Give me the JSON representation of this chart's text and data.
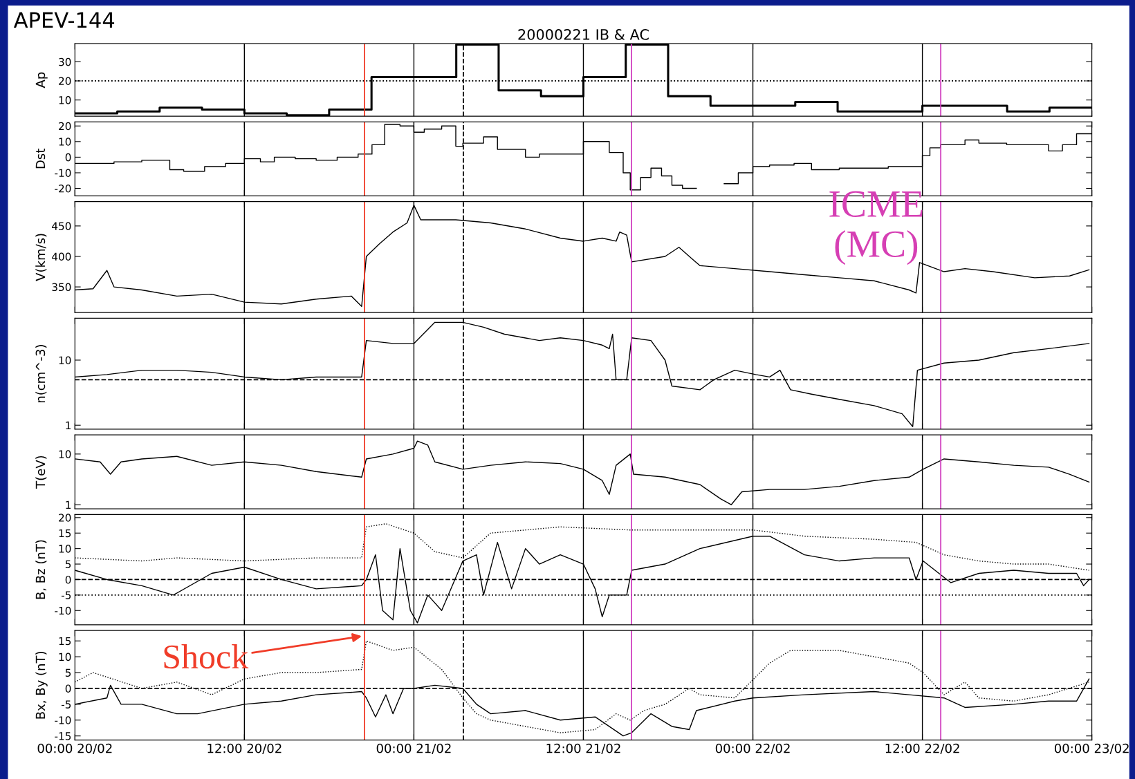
{
  "chart_data": [
    {
      "type": "step",
      "title": "20000221 IB & AC",
      "ylabel": "Ap",
      "annotations": [
        "APEV-144"
      ],
      "xlim": [
        "2000-02-20T00:00",
        "2000-02-23T00:00"
      ],
      "xticks": [
        {
          "value": "2000-02-20T00:00",
          "label": null
        },
        {
          "value": "2000-02-20T12:00",
          "label": null
        },
        {
          "value": "2000-02-21T00:00",
          "label": null
        },
        {
          "value": "2000-02-21T12:00",
          "label": null
        },
        {
          "value": "2000-02-22T00:00",
          "label": null
        },
        {
          "value": "2000-02-22T12:00",
          "label": null
        },
        {
          "value": "2000-02-23T00:00",
          "label": null
        }
      ],
      "ylim": [
        1.5,
        39.5
      ],
      "yticks": [
        10,
        20,
        30
      ],
      "grid": "x",
      "tick_labels": "y",
      "series": [
        {
          "color": "#000000",
          "x": [
            "2000-02-20T00:00",
            "2000-02-20T03:00",
            "2000-02-20T06:00",
            "2000-02-20T09:00",
            "2000-02-20T12:00",
            "2000-02-20T15:00",
            "2000-02-20T18:00",
            "2000-02-20T21:00",
            "2000-02-21T00:00",
            "2000-02-21T03:00",
            "2000-02-21T06:00",
            "2000-02-21T09:00",
            "2000-02-21T12:00",
            "2000-02-21T15:00",
            "2000-02-21T18:00",
            "2000-02-21T21:00",
            "2000-02-22T00:00",
            "2000-02-22T03:00",
            "2000-02-22T06:00",
            "2000-02-22T09:00",
            "2000-02-22T12:00",
            "2000-02-22T15:00",
            "2000-02-22T18:00",
            "2000-02-22T21:00",
            "2000-02-23T00:00"
          ],
          "values": [
            3,
            4,
            6,
            5,
            3,
            2,
            5,
            22,
            22,
            39,
            15,
            12,
            22,
            39,
            12,
            7,
            7,
            9,
            4,
            4,
            7,
            7,
            4,
            6,
            6
          ]
        }
      ],
      "ref_lines": [
        {
          "axis": "y",
          "value": 20,
          "line_style": "dotted",
          "color": "#000000"
        },
        {
          "axis": "x",
          "value": "2000-02-20T20:30",
          "color": "#f03c28"
        },
        {
          "axis": "x",
          "value": "2000-02-21T03:30",
          "line_style": "dashed",
          "color": "#000000"
        },
        {
          "axis": "x",
          "value": "2000-02-21T15:24",
          "color": "#d040c0"
        },
        {
          "axis": "x",
          "value": "2000-02-22T13:18",
          "color": "#d040c0"
        }
      ]
    },
    {
      "type": "step",
      "ylabel": "Dst",
      "xlim": [
        "2000-02-20T00:00",
        "2000-02-23T00:00"
      ],
      "xticks": [
        {
          "value": "2000-02-20T00:00",
          "label": null
        },
        {
          "value": "2000-02-20T12:00",
          "label": null
        },
        {
          "value": "2000-02-21T00:00",
          "label": null
        },
        {
          "value": "2000-02-21T12:00",
          "label": null
        },
        {
          "value": "2000-02-22T00:00",
          "label": null
        },
        {
          "value": "2000-02-22T12:00",
          "label": null
        },
        {
          "value": "2000-02-23T00:00",
          "label": null
        }
      ],
      "ylim": [
        -24.8,
        22.6
      ],
      "yticks": [
        -20,
        -10,
        0,
        10,
        20
      ],
      "grid": "x",
      "tick_labels": "y",
      "series": [
        {
          "color": "#000000",
          "x": [
            "2000-02-20T00:00",
            "2000-02-20T02:46",
            "2000-02-20T04:44",
            "2000-02-20T06:43",
            "2000-02-20T07:42",
            "2000-02-20T09:11",
            "2000-02-20T10:40",
            "2000-02-20T12:00",
            "2000-02-20T13:08",
            "2000-02-20T14:07",
            "2000-02-20T15:36",
            "2000-02-20T17:05",
            "2000-02-20T18:34",
            "2000-02-20T20:03",
            "2000-02-20T21:02",
            "2000-02-20T21:56",
            "2000-02-20T23:01",
            "2000-02-21T00:00",
            "2000-02-21T00:44",
            "2000-02-21T01:58",
            "2000-02-21T02:58",
            "2000-02-21T03:28",
            "2000-02-21T04:56",
            "2000-02-21T05:55",
            "2000-02-21T07:54",
            "2000-02-21T08:53",
            "2000-02-21T12:00",
            "2000-02-21T13:50",
            "2000-02-21T14:49",
            "2000-02-21T15:19",
            "2000-02-21T16:03",
            "2000-02-21T16:47",
            "2000-02-21T17:32",
            "2000-02-21T18:16",
            "2000-02-21T19:01",
            "2000-02-21T20:00",
            "2000-02-21T21:58",
            "2000-02-21T22:58",
            "2000-02-22T00:00",
            "2000-02-22T01:11",
            "2000-02-22T02:55",
            "2000-02-22T04:09",
            "2000-02-22T06:07",
            "2000-02-22T09:35",
            "2000-02-22T12:00",
            "2000-02-22T12:32",
            "2000-02-22T13:17",
            "2000-02-22T15:01",
            "2000-02-22T16:00",
            "2000-02-22T17:58",
            "2000-02-22T20:56",
            "2000-02-22T21:55",
            "2000-02-22T22:55",
            "2000-02-23T00:00"
          ],
          "values": [
            -4,
            -3,
            -2,
            -8,
            -9,
            -6,
            -4,
            -1,
            -3,
            0,
            -1,
            -2,
            0,
            2,
            8,
            21,
            20,
            16,
            18,
            20,
            7,
            9,
            13,
            5,
            0,
            2,
            10,
            3,
            -10,
            -21,
            -13,
            -7,
            -12,
            -18,
            -20,
            null,
            -17,
            -10,
            -6,
            -5,
            -4,
            -8,
            -7,
            -6,
            1,
            6,
            8,
            11,
            9,
            8,
            4,
            8,
            15,
            15
          ]
        }
      ],
      "ref_lines": [
        {
          "axis": "x",
          "value": "2000-02-20T20:30",
          "color": "#f03c28"
        },
        {
          "axis": "x",
          "value": "2000-02-21T03:30",
          "line_style": "dashed",
          "color": "#000000"
        },
        {
          "axis": "x",
          "value": "2000-02-21T15:24",
          "color": "#d040c0"
        },
        {
          "axis": "x",
          "value": "2000-02-22T13:18",
          "color": "#d040c0"
        }
      ]
    },
    {
      "type": "line",
      "ylabel": "V(km/s)",
      "annotations": [
        "ICME\n(MC)"
      ],
      "xlim": [
        "2000-02-20T00:00",
        "2000-02-23T00:00"
      ],
      "xticks": [
        {
          "value": "2000-02-20T00:00",
          "label": null
        },
        {
          "value": "2000-02-20T12:00",
          "label": null
        },
        {
          "value": "2000-02-21T00:00",
          "label": null
        },
        {
          "value": "2000-02-21T12:00",
          "label": null
        },
        {
          "value": "2000-02-22T00:00",
          "label": null
        },
        {
          "value": "2000-02-22T12:00",
          "label": null
        },
        {
          "value": "2000-02-23T00:00",
          "label": null
        }
      ],
      "ylim": [
        308,
        490
      ],
      "yticks": [
        350,
        400,
        450
      ],
      "grid": "x",
      "tick_labels": "y",
      "series": [
        {
          "color": "#000000",
          "x": [
            "2000-02-20T00:00",
            "2000-02-20T01:17",
            "2000-02-20T02:16",
            "2000-02-20T02:46",
            "2000-02-20T04:44",
            "2000-02-20T07:13",
            "2000-02-20T09:41",
            "2000-02-20T12:00",
            "2000-02-20T14:37",
            "2000-02-20T17:05",
            "2000-02-20T19:34",
            "2000-02-20T20:18",
            "2000-02-20T20:38",
            "2000-02-20T21:32",
            "2000-02-20T22:31",
            "2000-02-20T23:31",
            "2000-02-21T00:00",
            "2000-02-21T00:29",
            "2000-02-21T02:58",
            "2000-02-21T05:26",
            "2000-02-21T07:54",
            "2000-02-21T10:22",
            "2000-02-21T12:00",
            "2000-02-21T13:20",
            "2000-02-21T14:19",
            "2000-02-21T14:34",
            "2000-02-21T15:04",
            "2000-02-21T15:25",
            "2000-02-21T17:47",
            "2000-02-21T18:46",
            "2000-02-21T19:45",
            "2000-02-21T20:15",
            "2000-02-21T22:43",
            "2000-02-22T01:11",
            "2000-02-22T03:39",
            "2000-02-22T06:07",
            "2000-02-22T08:35",
            "2000-02-22T11:04",
            "2000-02-22T11:33",
            "2000-02-22T11:48",
            "2000-02-22T13:32",
            "2000-02-22T15:01",
            "2000-02-22T16:59",
            "2000-02-22T19:57",
            "2000-02-22T22:25",
            "2000-02-22T23:48"
          ],
          "values": [
            345,
            347,
            377,
            350,
            345,
            335,
            338,
            325,
            322,
            330,
            335,
            318,
            400,
            420,
            440,
            455,
            484,
            460,
            460,
            455,
            445,
            430,
            425,
            430,
            425,
            440,
            435,
            391,
            400,
            415,
            395,
            385,
            380,
            375,
            370,
            365,
            360,
            345,
            340,
            390,
            375,
            380,
            375,
            365,
            368,
            378
          ]
        }
      ],
      "ref_lines": [
        {
          "axis": "x",
          "value": "2000-02-20T20:30",
          "color": "#f03c28"
        },
        {
          "axis": "x",
          "value": "2000-02-21T03:30",
          "line_style": "dashed",
          "color": "#000000"
        },
        {
          "axis": "x",
          "value": "2000-02-21T15:24",
          "color": "#d040c0"
        },
        {
          "axis": "x",
          "value": "2000-02-22T13:18",
          "color": "#d040c0"
        }
      ]
    },
    {
      "type": "line",
      "ylabel": "n(cm^-3)",
      "log": true,
      "xlim": [
        "2000-02-20T00:00",
        "2000-02-23T00:00"
      ],
      "xticks": [
        {
          "value": "2000-02-20T00:00",
          "label": null
        },
        {
          "value": "2000-02-20T12:00",
          "label": null
        },
        {
          "value": "2000-02-21T00:00",
          "label": null
        },
        {
          "value": "2000-02-21T12:00",
          "label": null
        },
        {
          "value": "2000-02-22T00:00",
          "label": null
        },
        {
          "value": "2000-02-22T12:00",
          "label": null
        },
        {
          "value": "2000-02-23T00:00",
          "label": null
        }
      ],
      "ylim": [
        0.87,
        44
      ],
      "yticks": [
        1,
        10
      ],
      "grid": "x",
      "tick_labels": "y",
      "series": [
        {
          "color": "#000000",
          "x": [
            "2000-02-20T00:00",
            "2000-02-20T02:16",
            "2000-02-20T04:44",
            "2000-02-20T07:13",
            "2000-02-20T09:41",
            "2000-02-20T12:00",
            "2000-02-20T14:37",
            "2000-02-20T17:05",
            "2000-02-20T20:18",
            "2000-02-20T20:38",
            "2000-02-20T22:31",
            "2000-02-21T00:00",
            "2000-02-21T01:29",
            "2000-02-21T03:28",
            "2000-02-21T04:56",
            "2000-02-21T06:25",
            "2000-02-21T08:53",
            "2000-02-21T10:22",
            "2000-02-21T12:00",
            "2000-02-21T13:20",
            "2000-02-21T13:50",
            "2000-02-21T14:04",
            "2000-02-21T14:19",
            "2000-02-21T15:04",
            "2000-02-21T15:25",
            "2000-02-21T16:47",
            "2000-02-21T17:47",
            "2000-02-21T18:16",
            "2000-02-21T20:15",
            "2000-02-21T21:14",
            "2000-02-21T22:43",
            "2000-02-22T00:12",
            "2000-02-22T01:11",
            "2000-02-22T01:55",
            "2000-02-22T02:40",
            "2000-02-22T04:09",
            "2000-02-22T06:07",
            "2000-02-22T08:35",
            "2000-02-22T10:34",
            "2000-02-22T11:19",
            "2000-02-22T11:39",
            "2000-02-22T13:32",
            "2000-02-22T16:00",
            "2000-02-22T18:28",
            "2000-02-22T20:56",
            "2000-02-22T23:48"
          ],
          "values": [
            5.5,
            6,
            7,
            7,
            6.5,
            5.5,
            5,
            5.5,
            5.5,
            20,
            18,
            18,
            38,
            38,
            32,
            25,
            20,
            22,
            20,
            17,
            15,
            25,
            5,
            5,
            22,
            20,
            10,
            4,
            3.5,
            5,
            7,
            6,
            5.5,
            7,
            3.5,
            3,
            2.5,
            2,
            1.5,
            0.95,
            7,
            9,
            10,
            13,
            15,
            18
          ]
        }
      ],
      "ref_lines": [
        {
          "axis": "y",
          "value": 5,
          "line_style": "dashed",
          "color": "#000000"
        },
        {
          "axis": "x",
          "value": "2000-02-20T20:30",
          "color": "#f03c28"
        },
        {
          "axis": "x",
          "value": "2000-02-21T03:30",
          "line_style": "dashed",
          "color": "#000000"
        },
        {
          "axis": "x",
          "value": "2000-02-21T15:24",
          "color": "#d040c0"
        },
        {
          "axis": "x",
          "value": "2000-02-22T13:18",
          "color": "#d040c0"
        }
      ]
    },
    {
      "type": "line",
      "ylabel": "T(eV)",
      "log": true,
      "xlim": [
        "2000-02-20T00:00",
        "2000-02-23T00:00"
      ],
      "xticks": [
        {
          "value": "2000-02-20T00:00",
          "label": null
        },
        {
          "value": "2000-02-20T12:00",
          "label": null
        },
        {
          "value": "2000-02-21T00:00",
          "label": null
        },
        {
          "value": "2000-02-21T12:00",
          "label": null
        },
        {
          "value": "2000-02-22T00:00",
          "label": null
        },
        {
          "value": "2000-02-22T12:00",
          "label": null
        },
        {
          "value": "2000-02-23T00:00",
          "label": null
        }
      ],
      "ylim": [
        0.83,
        23.9
      ],
      "yticks": [
        1,
        10
      ],
      "grid": "x",
      "tick_labels": "y",
      "series": [
        {
          "color": "#000000",
          "x": [
            "2000-02-20T00:00",
            "2000-02-20T01:47",
            "2000-02-20T02:31",
            "2000-02-20T03:16",
            "2000-02-20T04:44",
            "2000-02-20T07:13",
            "2000-02-20T09:41",
            "2000-02-20T12:00",
            "2000-02-20T14:37",
            "2000-02-20T17:05",
            "2000-02-20T20:18",
            "2000-02-20T20:38",
            "2000-02-20T22:31",
            "2000-02-21T00:00",
            "2000-02-21T00:15",
            "2000-02-21T00:59",
            "2000-02-21T01:29",
            "2000-02-21T03:28",
            "2000-02-21T05:26",
            "2000-02-21T07:54",
            "2000-02-21T10:22",
            "2000-02-21T12:00",
            "2000-02-21T13:20",
            "2000-02-21T13:50",
            "2000-02-21T14:19",
            "2000-02-21T15:19",
            "2000-02-21T15:33",
            "2000-02-21T17:47",
            "2000-02-21T20:15",
            "2000-02-21T21:44",
            "2000-02-21T22:28",
            "2000-02-21T23:13",
            "2000-02-22T01:11",
            "2000-02-22T03:39",
            "2000-02-22T06:07",
            "2000-02-22T08:35",
            "2000-02-22T11:04",
            "2000-02-22T12:03",
            "2000-02-22T13:32",
            "2000-02-22T16:00",
            "2000-02-22T18:28",
            "2000-02-22T20:56",
            "2000-02-22T22:25",
            "2000-02-22T23:48"
          ],
          "values": [
            8,
            7,
            4,
            7,
            8,
            9,
            6,
            7,
            6,
            4.5,
            3.5,
            8,
            10,
            13,
            18,
            15,
            7,
            5,
            6,
            7,
            6.5,
            5,
            3,
            1.6,
            6,
            10,
            4,
            3.5,
            2.5,
            1.3,
            1.0,
            1.8,
            2,
            2,
            2.3,
            3,
            3.5,
            5,
            8,
            7,
            6,
            5.5,
            4,
            2.8
          ]
        }
      ],
      "ref_lines": [
        {
          "axis": "x",
          "value": "2000-02-20T20:30",
          "color": "#f03c28"
        },
        {
          "axis": "x",
          "value": "2000-02-21T03:30",
          "line_style": "dashed",
          "color": "#000000"
        },
        {
          "axis": "x",
          "value": "2000-02-21T15:24",
          "color": "#d040c0"
        },
        {
          "axis": "x",
          "value": "2000-02-22T13:18",
          "color": "#d040c0"
        }
      ]
    },
    {
      "type": "line",
      "ylabel": "B, Bz (nT)",
      "xlim": [
        "2000-02-20T00:00",
        "2000-02-23T00:00"
      ],
      "xticks": [
        {
          "value": "2000-02-20T00:00",
          "label": null
        },
        {
          "value": "2000-02-20T12:00",
          "label": null
        },
        {
          "value": "2000-02-21T00:00",
          "label": null
        },
        {
          "value": "2000-02-21T12:00",
          "label": null
        },
        {
          "value": "2000-02-22T00:00",
          "label": null
        },
        {
          "value": "2000-02-22T12:00",
          "label": null
        },
        {
          "value": "2000-02-23T00:00",
          "label": null
        }
      ],
      "ylim": [
        -14.6,
        21
      ],
      "yticks": [
        -10,
        -5,
        0,
        5,
        10,
        15,
        20
      ],
      "grid": "x",
      "tick_labels": "y",
      "series": [
        {
          "color": "#000000",
          "x": [
            "2000-02-20T00:00",
            "2000-02-20T02:16",
            "2000-02-20T04:44",
            "2000-02-20T06:58",
            "2000-02-20T09:41",
            "2000-02-20T12:00",
            "2000-02-20T14:37",
            "2000-02-20T17:05",
            "2000-02-20T20:18",
            "2000-02-20T20:38",
            "2000-02-20T21:17",
            "2000-02-20T21:47",
            "2000-02-20T22:31",
            "2000-02-20T23:01",
            "2000-02-20T23:45",
            "2000-02-21T00:15",
            "2000-02-21T00:59",
            "2000-02-21T01:58",
            "2000-02-21T03:28",
            "2000-02-21T04:26",
            "2000-02-21T04:56",
            "2000-02-21T05:55",
            "2000-02-21T06:55",
            "2000-02-21T07:54",
            "2000-02-21T08:53",
            "2000-02-21T10:22",
            "2000-02-21T12:00",
            "2000-02-21T12:50",
            "2000-02-21T13:20",
            "2000-02-21T13:50",
            "2000-02-21T15:04",
            "2000-02-21T15:25",
            "2000-02-21T17:47",
            "2000-02-21T20:15",
            "2000-02-22T00:00",
            "2000-02-22T01:11",
            "2000-02-22T03:39",
            "2000-02-22T06:07",
            "2000-02-22T08:35",
            "2000-02-22T11:04",
            "2000-02-22T11:33",
            "2000-02-22T12:03",
            "2000-02-22T14:01",
            "2000-02-22T16:00",
            "2000-02-22T18:28",
            "2000-02-22T20:56",
            "2000-02-22T22:55",
            "2000-02-22T23:25",
            "2000-02-22T23:48"
          ],
          "values": [
            3,
            0,
            -2,
            -5,
            2,
            4,
            0,
            -3,
            -2,
            0,
            8,
            -10,
            -13,
            10,
            -10,
            -14,
            -5,
            -10,
            6,
            8,
            -5,
            12,
            -3,
            10,
            5,
            8,
            5,
            -3,
            -12,
            -5,
            -5,
            3,
            5,
            10,
            14,
            14,
            8,
            6,
            7,
            7,
            0,
            6,
            -1,
            2,
            3,
            2,
            2,
            -2,
            0
          ]
        },
        {
          "color": "#000000",
          "line_style": "dotted",
          "x": [
            "2000-02-20T00:00",
            "2000-02-20T04:44",
            "2000-02-20T07:13",
            "2000-02-20T12:00",
            "2000-02-20T17:05",
            "2000-02-20T20:18",
            "2000-02-20T20:38",
            "2000-02-20T22:01",
            "2000-02-21T00:00",
            "2000-02-21T01:29",
            "2000-02-21T03:28",
            "2000-02-21T05:26",
            "2000-02-21T10:22",
            "2000-02-21T15:19",
            "2000-02-21T20:15",
            "2000-02-22T00:00",
            "2000-02-22T03:39",
            "2000-02-22T08:35",
            "2000-02-22T11:33",
            "2000-02-22T13:32",
            "2000-02-22T16:00",
            "2000-02-22T18:28",
            "2000-02-22T20:56",
            "2000-02-22T23:48"
          ],
          "values": [
            7,
            6,
            7,
            6,
            7,
            7,
            17,
            18,
            15,
            9,
            7,
            15,
            17,
            16,
            16,
            16,
            14,
            13,
            12,
            8,
            6,
            5,
            5,
            3
          ]
        }
      ],
      "ref_lines": [
        {
          "axis": "y",
          "value": 0,
          "line_style": "dashed",
          "color": "#000000"
        },
        {
          "axis": "y",
          "value": -5,
          "line_style": "dotted",
          "color": "#000000"
        },
        {
          "axis": "x",
          "value": "2000-02-20T20:30",
          "color": "#f03c28"
        },
        {
          "axis": "x",
          "value": "2000-02-21T03:30",
          "line_style": "dashed",
          "color": "#000000"
        },
        {
          "axis": "x",
          "value": "2000-02-21T15:24",
          "color": "#d040c0"
        },
        {
          "axis": "x",
          "value": "2000-02-22T13:18",
          "color": "#d040c0"
        }
      ]
    },
    {
      "type": "line",
      "ylabel": "Bx, By (nT)",
      "annotations": [
        "Shock"
      ],
      "xlim": [
        "2000-02-20T00:00",
        "2000-02-23T00:00"
      ],
      "xticks": [
        {
          "value": "2000-02-20T00:00",
          "label": "00:00 20/02"
        },
        {
          "value": "2000-02-20T12:00",
          "label": "12:00 20/02"
        },
        {
          "value": "2000-02-21T00:00",
          "label": "00:00 21/02"
        },
        {
          "value": "2000-02-21T12:00",
          "label": "12:00 21/02"
        },
        {
          "value": "2000-02-22T00:00",
          "label": "00:00 22/02"
        },
        {
          "value": "2000-02-22T12:00",
          "label": "12:00 22/02"
        },
        {
          "value": "2000-02-23T00:00",
          "label": "00:00 23/02"
        }
      ],
      "ylim": [
        -16.3,
        18.3
      ],
      "yticks": [
        -15,
        -10,
        -5,
        0,
        5,
        10,
        15
      ],
      "grid": "x",
      "series": [
        {
          "color": "#000000",
          "x": [
            "2000-02-20T00:00",
            "2000-02-20T02:16",
            "2000-02-20T02:31",
            "2000-02-20T03:16",
            "2000-02-20T04:44",
            "2000-02-20T07:13",
            "2000-02-20T08:41",
            "2000-02-20T12:00",
            "2000-02-20T14:37",
            "2000-02-20T17:05",
            "2000-02-20T20:18",
            "2000-02-20T20:38",
            "2000-02-20T21:17",
            "2000-02-20T22:01",
            "2000-02-20T22:31",
            "2000-02-20T23:16",
            "2000-02-21T00:00",
            "2000-02-21T01:29",
            "2000-02-21T03:28",
            "2000-02-21T04:26",
            "2000-02-21T05:26",
            "2000-02-21T07:54",
            "2000-02-21T10:22",
            "2000-02-21T12:50",
            "2000-02-21T14:49",
            "2000-02-21T15:25",
            "2000-02-21T16:47",
            "2000-02-21T18:16",
            "2000-02-21T19:30",
            "2000-02-21T20:00",
            "2000-02-21T22:43",
            "2000-02-22T00:00",
            "2000-02-22T03:39",
            "2000-02-22T08:35",
            "2000-02-22T11:04",
            "2000-02-22T13:32",
            "2000-02-22T15:01",
            "2000-02-22T18:28",
            "2000-02-22T20:56",
            "2000-02-22T22:55",
            "2000-02-22T23:48"
          ],
          "values": [
            -5,
            -3,
            1,
            -5,
            -5,
            -8,
            -8,
            -5,
            -4,
            -2,
            -1,
            -3,
            -9,
            -2,
            -8,
            0,
            0,
            1,
            0,
            -5,
            -8,
            -7,
            -10,
            -9,
            -15,
            -14,
            -8,
            -12,
            -13,
            -7,
            -4,
            -3,
            -2,
            -1,
            -2,
            -3,
            -6,
            -5,
            -4,
            -4,
            3
          ]
        },
        {
          "color": "#000000",
          "line_style": "dotted",
          "x": [
            "2000-02-20T00:00",
            "2000-02-20T01:17",
            "2000-02-20T04:44",
            "2000-02-20T07:13",
            "2000-02-20T09:41",
            "2000-02-20T12:00",
            "2000-02-20T14:37",
            "2000-02-20T17:05",
            "2000-02-20T20:18",
            "2000-02-20T20:38",
            "2000-02-20T22:31",
            "2000-02-21T00:00",
            "2000-02-21T01:58",
            "2000-02-21T03:28",
            "2000-02-21T04:26",
            "2000-02-21T05:26",
            "2000-02-21T07:54",
            "2000-02-21T10:22",
            "2000-02-21T12:50",
            "2000-02-21T14:19",
            "2000-02-21T15:19",
            "2000-02-21T16:17",
            "2000-02-21T17:47",
            "2000-02-21T19:30",
            "2000-02-21T20:15",
            "2000-02-21T22:43",
            "2000-02-22T01:11",
            "2000-02-22T02:40",
            "2000-02-22T04:53",
            "2000-02-22T06:07",
            "2000-02-22T08:35",
            "2000-02-22T11:04",
            "2000-02-22T12:03",
            "2000-02-22T13:32",
            "2000-02-22T15:01",
            "2000-02-22T16:00",
            "2000-02-22T18:28",
            "2000-02-22T20:56",
            "2000-02-22T23:48"
          ],
          "values": [
            2,
            5,
            0,
            2,
            -2,
            3,
            5,
            5,
            6,
            15,
            12,
            13,
            6,
            -3,
            -8,
            -10,
            -12,
            -14,
            -13,
            -8,
            -10,
            -7,
            -5,
            0,
            -2,
            -3,
            8,
            12,
            12,
            12,
            10,
            8,
            5,
            -2,
            2,
            -3,
            -4,
            -2,
            2
          ]
        }
      ],
      "ref_lines": [
        {
          "axis": "y",
          "value": 0,
          "line_style": "dashed",
          "color": "#000000"
        },
        {
          "axis": "x",
          "value": "2000-02-20T20:30",
          "color": "#f03c28"
        },
        {
          "axis": "x",
          "value": "2000-02-21T03:30",
          "line_style": "dashed",
          "color": "#000000"
        },
        {
          "axis": "x",
          "value": "2000-02-21T15:24",
          "color": "#d040c0"
        },
        {
          "axis": "x",
          "value": "2000-02-22T13:18",
          "color": "#d040c0"
        }
      ]
    }
  ]
}
